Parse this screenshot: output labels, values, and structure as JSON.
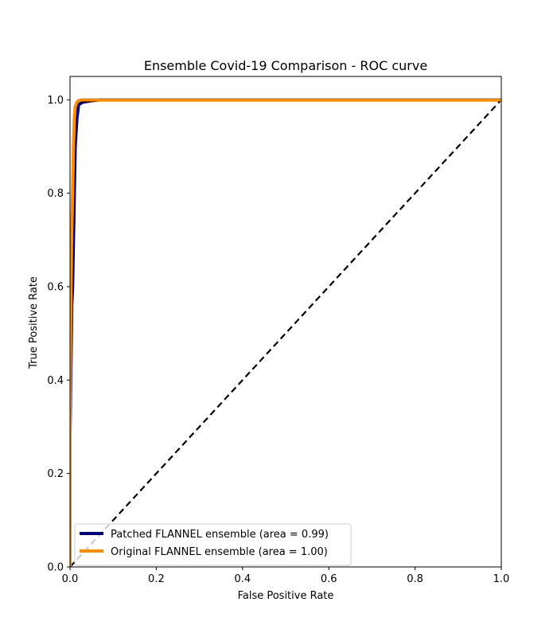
{
  "chart_data": {
    "type": "line",
    "title": "Ensemble Covid-19 Comparison - ROC curve",
    "xlabel": "False Positive Rate",
    "ylabel": "True Positive Rate",
    "xlim": [
      0.0,
      1.0
    ],
    "ylim": [
      0.0,
      1.05
    ],
    "xticks": [
      "0.0",
      "0.2",
      "0.4",
      "0.6",
      "0.8",
      "1.0"
    ],
    "yticks": [
      "0.0",
      "0.2",
      "0.4",
      "0.6",
      "0.8",
      "1.0"
    ],
    "grid": false,
    "legend_position": "lower-right",
    "series": [
      {
        "name": "Patched FLANNEL ensemble (area = 0.99)",
        "color": "#000080",
        "x": [
          0.0,
          0.0,
          0.002,
          0.004,
          0.006,
          0.008,
          0.01,
          0.012,
          0.014,
          0.016,
          0.02,
          0.03,
          0.05,
          0.07,
          1.0
        ],
        "y": [
          0.0,
          0.28,
          0.42,
          0.56,
          0.6,
          0.7,
          0.8,
          0.9,
          0.93,
          0.96,
          0.99,
          0.995,
          0.998,
          1.0,
          1.0
        ]
      },
      {
        "name": "Original FLANNEL ensemble (area = 1.00)",
        "color": "#ff8c00",
        "x": [
          0.0,
          0.0,
          0.002,
          0.004,
          0.006,
          0.008,
          0.01,
          0.012,
          0.016,
          0.022,
          0.03,
          1.0
        ],
        "y": [
          0.0,
          0.33,
          0.58,
          0.72,
          0.8,
          0.9,
          0.96,
          0.985,
          0.995,
          0.999,
          1.0,
          1.0
        ]
      },
      {
        "name": "",
        "color": "#000000",
        "style": "dashed",
        "x": [
          0.0,
          1.0
        ],
        "y": [
          0.0,
          1.0
        ]
      }
    ]
  }
}
